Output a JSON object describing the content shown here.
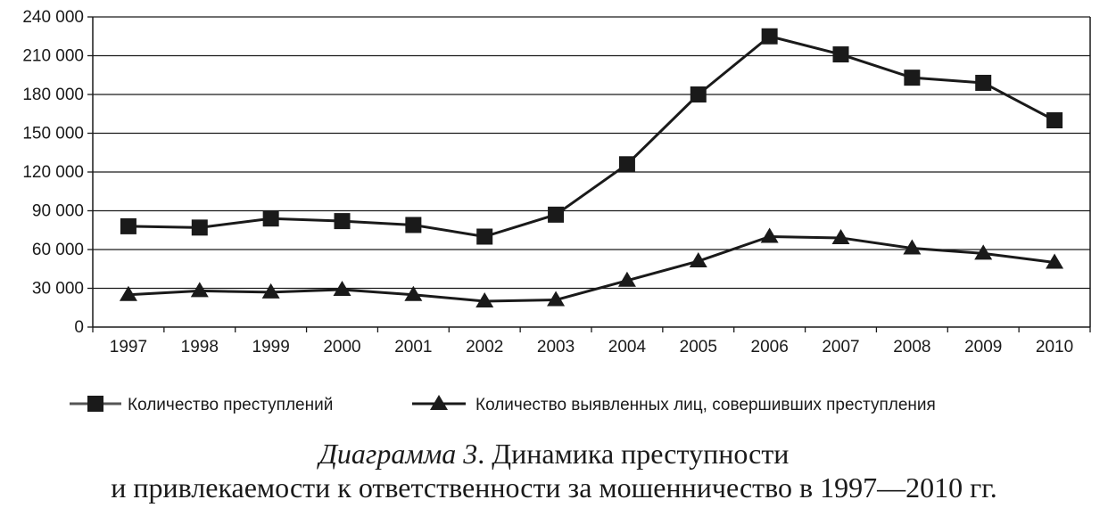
{
  "chart_data": {
    "type": "line",
    "categories": [
      "1997",
      "1998",
      "1999",
      "2000",
      "2001",
      "2002",
      "2003",
      "2004",
      "2005",
      "2006",
      "2007",
      "2008",
      "2009",
      "2010"
    ],
    "yticks": [
      "0",
      "30 000",
      "60 000",
      "90 000",
      "120 000",
      "150 000",
      "180 000",
      "210 000",
      "240 000"
    ],
    "ylim": [
      0,
      240000
    ],
    "grid": true,
    "legend_position": "bottom",
    "series": [
      {
        "name": "Количество преступлений",
        "marker": "square",
        "color": "#1a1a1a",
        "values": [
          78000,
          77000,
          84000,
          82000,
          79000,
          70000,
          87000,
          126000,
          180000,
          225000,
          211000,
          193000,
          189000,
          160000
        ]
      },
      {
        "name": "Количество выявленных лиц, совершивших преступления",
        "marker": "triangle",
        "color": "#1a1a1a",
        "values": [
          25000,
          28000,
          27000,
          29000,
          25000,
          20000,
          21000,
          36000,
          51000,
          70000,
          69000,
          61000,
          57000,
          50000
        ]
      }
    ]
  },
  "caption": {
    "label": "Диаграмма 3",
    "line1": ". Динамика преступности",
    "line2": "и привлекаемости к ответственности за мошенничество в 1997—2010 гг."
  }
}
